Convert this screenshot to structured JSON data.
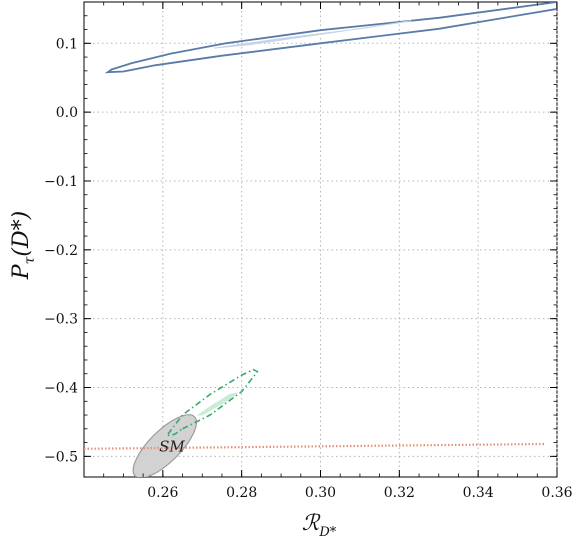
{
  "chart_data": {
    "type": "scatter",
    "xlabel": "𝓡_{D*}",
    "ylabel": "P_τ(D*)",
    "xlabel_text": "ℛ",
    "xlabel_sub": "D*",
    "ylabel_text": "P",
    "ylabel_sub": "τ",
    "ylabel_arg": "(D*)",
    "xlim": [
      0.24,
      0.36
    ],
    "ylim": [
      -0.53,
      0.16
    ],
    "grid": true,
    "xticks": [
      {
        "value": 0.26,
        "label": "0.26"
      },
      {
        "value": 0.28,
        "label": "0.28"
      },
      {
        "value": 0.3,
        "label": "0.30"
      },
      {
        "value": 0.32,
        "label": "0.32"
      },
      {
        "value": 0.34,
        "label": "0.34"
      },
      {
        "value": 0.36,
        "label": "0.36"
      }
    ],
    "yticks": [
      {
        "value": 0.1,
        "label": "0.1"
      },
      {
        "value": 0.0,
        "label": "0.0"
      },
      {
        "value": -0.1,
        "label": "−0.1"
      },
      {
        "value": -0.2,
        "label": "−0.2"
      },
      {
        "value": -0.3,
        "label": "−0.3"
      },
      {
        "value": -0.4,
        "label": "−0.4"
      },
      {
        "value": -0.5,
        "label": "−0.5"
      }
    ],
    "regions": [
      {
        "style": "outline",
        "color": "#5a7aa8",
        "points": [
          [
            0.246,
            0.058
          ],
          [
            0.247,
            0.062
          ],
          [
            0.252,
            0.071
          ],
          [
            0.262,
            0.085
          ],
          [
            0.276,
            0.1
          ],
          [
            0.3,
            0.119
          ],
          [
            0.33,
            0.137
          ],
          [
            0.36,
            0.16
          ],
          [
            0.36,
            0.15
          ],
          [
            0.33,
            0.121
          ],
          [
            0.3,
            0.1
          ],
          [
            0.275,
            0.082
          ],
          [
            0.258,
            0.068
          ],
          [
            0.25,
            0.059
          ],
          [
            0.246,
            0.058
          ]
        ]
      },
      {
        "style": "filled",
        "color": "#c6d3e8",
        "points": [
          [
            0.273,
            0.093
          ],
          [
            0.29,
            0.107
          ],
          [
            0.31,
            0.121
          ],
          [
            0.323,
            0.133
          ],
          [
            0.32,
            0.13
          ],
          [
            0.3,
            0.113
          ],
          [
            0.282,
            0.098
          ],
          [
            0.273,
            0.093
          ]
        ]
      },
      {
        "style": "dashdot",
        "color": "#3aa86b",
        "points": [
          [
            0.265,
            -0.46
          ],
          [
            0.272,
            -0.44
          ],
          [
            0.28,
            -0.406
          ],
          [
            0.284,
            -0.377
          ],
          [
            0.283,
            -0.374
          ],
          [
            0.28,
            -0.382
          ],
          [
            0.272,
            -0.41
          ],
          [
            0.265,
            -0.44
          ],
          [
            0.261,
            -0.47
          ],
          [
            0.263,
            -0.468
          ],
          [
            0.265,
            -0.46
          ]
        ]
      },
      {
        "style": "filled",
        "color": "#c9ecd4",
        "points": [
          [
            0.27,
            -0.44
          ],
          [
            0.276,
            -0.42
          ],
          [
            0.279,
            -0.408
          ],
          [
            0.277,
            -0.41
          ],
          [
            0.272,
            -0.428
          ],
          [
            0.269,
            -0.44
          ],
          [
            0.27,
            -0.44
          ]
        ]
      },
      {
        "style": "dotted",
        "color": "#e59173",
        "points": [
          [
            0.24,
            -0.489
          ],
          [
            0.357,
            -0.482
          ]
        ]
      }
    ],
    "sm_ellipse": {
      "cx": 0.2605,
      "cy": -0.4855,
      "rx": 0.0085,
      "ry": 0.035,
      "tilt_deg": 45,
      "color": "#9c9c9c"
    },
    "annotations": [
      {
        "text": "SM",
        "x": 0.2623,
        "y": -0.4855
      }
    ]
  }
}
